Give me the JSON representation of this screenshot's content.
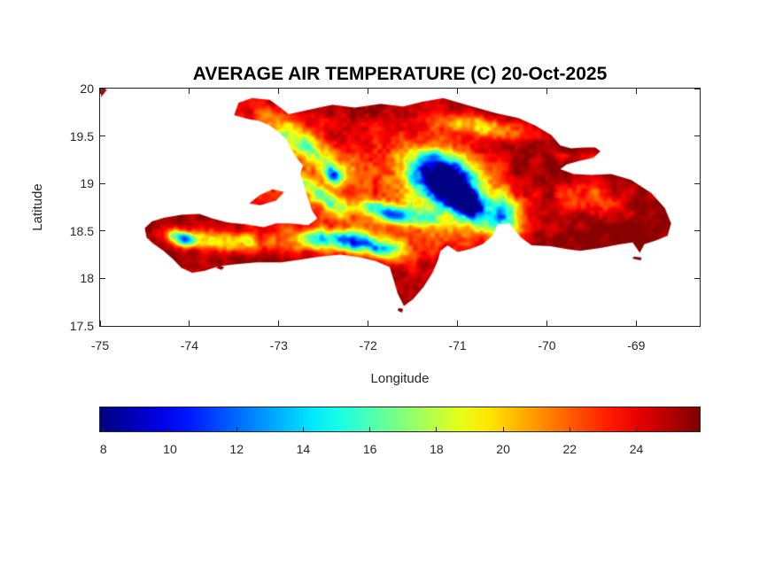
{
  "figure": {
    "background": "#ffffff",
    "title_color": "#000000",
    "axis_color": "#262626",
    "text_color": "#262626"
  },
  "chart_data": {
    "type": "heatmap",
    "title": "AVERAGE AIR TEMPERATURE (C) 20-Oct-2025",
    "xlabel": "Longitude",
    "ylabel": "Latitude",
    "xlim": [
      -75,
      -68.29
    ],
    "ylim": [
      17.5,
      20
    ],
    "grid": false,
    "x_ticks": {
      "values": [
        -75,
        -74,
        -73,
        -72,
        -71,
        -70,
        -69
      ],
      "labels": [
        "-75",
        "-74",
        "-73",
        "-72",
        "-71",
        "-70",
        "-69"
      ]
    },
    "y_ticks": {
      "values": [
        20,
        19.5,
        19,
        18.5,
        18,
        17.5
      ],
      "labels": [
        "20",
        "19.5",
        "19",
        "18.5",
        "18",
        "17.5"
      ]
    },
    "colorbar": {
      "orientation": "horizontal",
      "position": "below plot",
      "colormap": "jet",
      "cmin": 7.9,
      "cmax": 25.9,
      "tick_values": [
        8,
        10,
        12,
        14,
        16,
        18,
        20,
        22,
        24
      ],
      "tick_labels": [
        "8",
        "10",
        "12",
        "14",
        "16",
        "18",
        "20",
        "22",
        "24"
      ]
    },
    "units": "C",
    "sea_color": "#ffffff",
    "base_lowland_temp_c": 25.6,
    "value_range_c": [
      7.9,
      25.9
    ],
    "map": {
      "islands": [
        {
          "name": "hispaniola-main",
          "points": [
            [
              -73.5,
              19.72
            ],
            [
              -73.45,
              19.85
            ],
            [
              -73.3,
              19.9
            ],
            [
              -73.1,
              19.88
            ],
            [
              -72.97,
              19.79
            ],
            [
              -72.89,
              19.73
            ],
            [
              -72.6,
              19.79
            ],
            [
              -72.4,
              19.83
            ],
            [
              -72.15,
              19.8
            ],
            [
              -71.86,
              19.84
            ],
            [
              -71.61,
              19.81
            ],
            [
              -71.4,
              19.86
            ],
            [
              -71.16,
              19.9
            ],
            [
              -70.87,
              19.82
            ],
            [
              -70.57,
              19.74
            ],
            [
              -70.32,
              19.69
            ],
            [
              -70.13,
              19.61
            ],
            [
              -69.95,
              19.51
            ],
            [
              -69.85,
              19.4
            ],
            [
              -69.73,
              19.37
            ],
            [
              -69.58,
              19.38
            ],
            [
              -69.46,
              19.38
            ],
            [
              -69.4,
              19.34
            ],
            [
              -69.48,
              19.27
            ],
            [
              -69.63,
              19.24
            ],
            [
              -69.78,
              19.2
            ],
            [
              -69.85,
              19.15
            ],
            [
              -69.7,
              19.1
            ],
            [
              -69.5,
              19.09
            ],
            [
              -69.28,
              19.1
            ],
            [
              -69.06,
              19.04
            ],
            [
              -68.83,
              18.9
            ],
            [
              -68.68,
              18.74
            ],
            [
              -68.61,
              18.58
            ],
            [
              -68.65,
              18.45
            ],
            [
              -68.78,
              18.4
            ],
            [
              -68.91,
              18.36
            ],
            [
              -68.96,
              18.27
            ],
            [
              -69.04,
              18.38
            ],
            [
              -69.18,
              18.36
            ],
            [
              -69.4,
              18.32
            ],
            [
              -69.63,
              18.29
            ],
            [
              -69.78,
              18.31
            ],
            [
              -69.96,
              18.34
            ],
            [
              -70.17,
              18.35
            ],
            [
              -70.29,
              18.43
            ],
            [
              -70.42,
              18.58
            ],
            [
              -70.55,
              18.57
            ],
            [
              -70.61,
              18.45
            ],
            [
              -70.72,
              18.36
            ],
            [
              -70.86,
              18.31
            ],
            [
              -71.0,
              18.28
            ],
            [
              -71.11,
              18.35
            ],
            [
              -71.19,
              18.29
            ],
            [
              -71.22,
              18.19
            ],
            [
              -71.28,
              18.06
            ],
            [
              -71.38,
              17.91
            ],
            [
              -71.5,
              17.78
            ],
            [
              -71.6,
              17.71
            ],
            [
              -71.67,
              17.84
            ],
            [
              -71.72,
              18.0
            ],
            [
              -71.76,
              18.12
            ],
            [
              -71.91,
              18.18
            ],
            [
              -72.08,
              18.22
            ],
            [
              -72.31,
              18.25
            ],
            [
              -72.54,
              18.23
            ],
            [
              -72.75,
              18.2
            ],
            [
              -72.97,
              18.17
            ],
            [
              -73.25,
              18.17
            ],
            [
              -73.47,
              18.15
            ],
            [
              -73.67,
              18.13
            ],
            [
              -73.83,
              18.08
            ],
            [
              -73.97,
              18.06
            ],
            [
              -74.09,
              18.11
            ],
            [
              -74.19,
              18.21
            ],
            [
              -74.29,
              18.29
            ],
            [
              -74.41,
              18.37
            ],
            [
              -74.48,
              18.43
            ],
            [
              -74.5,
              18.53
            ],
            [
              -74.42,
              18.6
            ],
            [
              -74.28,
              18.64
            ],
            [
              -74.09,
              18.67
            ],
            [
              -73.89,
              18.68
            ],
            [
              -73.74,
              18.63
            ],
            [
              -73.57,
              18.59
            ],
            [
              -73.37,
              18.57
            ],
            [
              -73.17,
              18.54
            ],
            [
              -73.03,
              18.58
            ],
            [
              -72.87,
              18.58
            ],
            [
              -72.67,
              18.56
            ],
            [
              -72.57,
              18.63
            ],
            [
              -72.63,
              18.72
            ],
            [
              -72.68,
              18.86
            ],
            [
              -72.72,
              18.99
            ],
            [
              -72.76,
              19.1
            ],
            [
              -72.73,
              19.19
            ],
            [
              -72.81,
              19.28
            ],
            [
              -72.87,
              19.38
            ],
            [
              -72.91,
              19.46
            ],
            [
              -73.0,
              19.54
            ],
            [
              -73.1,
              19.61
            ],
            [
              -73.22,
              19.66
            ],
            [
              -73.35,
              19.68
            ]
          ]
        },
        {
          "name": "ile-de-la-gonave",
          "points": [
            [
              -73.33,
              18.79
            ],
            [
              -73.21,
              18.88
            ],
            [
              -73.07,
              18.94
            ],
            [
              -72.94,
              18.91
            ],
            [
              -73.03,
              18.82
            ],
            [
              -73.21,
              18.77
            ]
          ]
        },
        {
          "name": "ile-a-vache",
          "points": [
            [
              -73.7,
              18.11
            ],
            [
              -73.64,
              18.09
            ],
            [
              -73.61,
              18.12
            ],
            [
              -73.67,
              18.14
            ]
          ]
        },
        {
          "name": "isla-beata",
          "points": [
            [
              -71.67,
              17.66
            ],
            [
              -71.62,
              17.64
            ],
            [
              -71.61,
              17.68
            ],
            [
              -71.66,
              17.69
            ]
          ]
        },
        {
          "name": "isla-catalina",
          "points": [
            [
              -69.04,
              18.21
            ],
            [
              -68.95,
              18.19
            ],
            [
              -68.94,
              18.22
            ],
            [
              -69.03,
              18.23
            ]
          ]
        },
        {
          "name": "cuba-corner",
          "points": [
            [
              -74.99,
              19.99
            ],
            [
              -74.92,
              19.99
            ],
            [
              -74.99,
              19.91
            ]
          ]
        }
      ],
      "cold_features": [
        {
          "name": "cordillera-central-core",
          "lon": -71.17,
          "lat": 19.05,
          "rx": 0.32,
          "ry": 0.22,
          "rot_deg": -30,
          "min_temp_c": 10.6
        },
        {
          "name": "cordillera-central-halo",
          "lon": -71.05,
          "lat": 18.95,
          "rx": 0.6,
          "ry": 0.4,
          "rot_deg": -30,
          "min_temp_c": 19.1
        },
        {
          "name": "valle-nuevo",
          "lon": -70.85,
          "lat": 18.76,
          "rx": 0.2,
          "ry": 0.14,
          "rot_deg": -40,
          "min_temp_c": 12.6
        },
        {
          "name": "sierra-de-neiba",
          "lon": -71.72,
          "lat": 18.68,
          "rx": 0.38,
          "ry": 0.1,
          "rot_deg": -8,
          "min_temp_c": 15.1
        },
        {
          "name": "sierra-de-bahoruco-la-selle",
          "lon": -72.05,
          "lat": 18.37,
          "rx": 0.44,
          "ry": 0.11,
          "rot_deg": -10,
          "min_temp_c": 13.6
        },
        {
          "name": "massif-de-la-hotte",
          "lon": -74.08,
          "lat": 18.42,
          "rx": 0.15,
          "ry": 0.07,
          "rot_deg": -15,
          "min_temp_c": 13.6
        },
        {
          "name": "montagnes-noires",
          "lon": -72.38,
          "lat": 19.07,
          "rx": 0.12,
          "ry": 0.07,
          "rot_deg": -35,
          "min_temp_c": 17.6
        },
        {
          "name": "massif-du-nord",
          "lon": -72.7,
          "lat": 19.38,
          "rx": 0.5,
          "ry": 0.15,
          "rot_deg": -32,
          "min_temp_c": 19.1
        },
        {
          "name": "chaine-des-matheux",
          "lon": -72.55,
          "lat": 18.88,
          "rx": 0.33,
          "ry": 0.09,
          "rot_deg": -35,
          "min_temp_c": 19.1
        },
        {
          "name": "cordillera-septentrional",
          "lon": -70.7,
          "lat": 19.6,
          "rx": 0.55,
          "ry": 0.11,
          "rot_deg": -8,
          "min_temp_c": 20.1
        },
        {
          "name": "tiburon-ridge-west",
          "lon": -73.6,
          "lat": 18.4,
          "rx": 0.55,
          "ry": 0.1,
          "rot_deg": -4,
          "min_temp_c": 19.6
        },
        {
          "name": "tiburon-ridge-east",
          "lon": -72.6,
          "lat": 18.4,
          "rx": 0.3,
          "ry": 0.1,
          "rot_deg": -8,
          "min_temp_c": 19.6
        },
        {
          "name": "ocoa-hills",
          "lon": -70.5,
          "lat": 18.65,
          "rx": 0.2,
          "ry": 0.22,
          "rot_deg": 0,
          "min_temp_c": 17.1
        },
        {
          "name": "eastern-hills",
          "lon": -69.5,
          "lat": 18.85,
          "rx": 0.4,
          "ry": 0.18,
          "rot_deg": -5,
          "min_temp_c": 22.1
        },
        {
          "name": "haiti-interior-uplands",
          "lon": -72.8,
          "lat": 19.1,
          "rx": 1.1,
          "ry": 0.75,
          "rot_deg": -20,
          "min_temp_c": 22.8
        },
        {
          "name": "central-dr-uplands",
          "lon": -71.3,
          "lat": 18.8,
          "rx": 0.9,
          "ry": 0.7,
          "rot_deg": -20,
          "min_temp_c": 23.4
        },
        {
          "name": "samana-hills",
          "lon": -69.6,
          "lat": 19.27,
          "rx": 0.25,
          "ry": 0.06,
          "rot_deg": -5,
          "min_temp_c": 23.1
        }
      ]
    }
  }
}
